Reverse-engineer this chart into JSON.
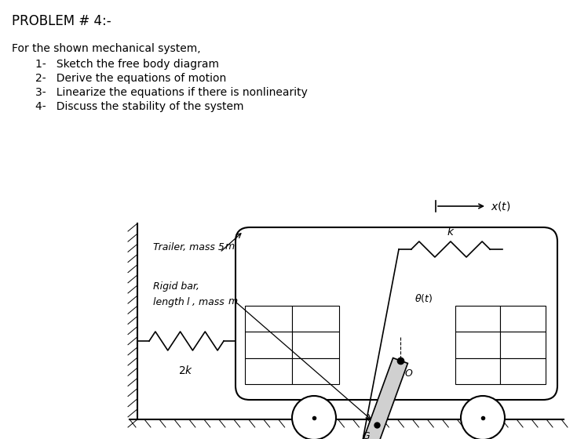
{
  "title": "PROBLEM # 4:-",
  "intro_text": "For the shown mechanical system,",
  "items": [
    "1-   Sketch the free body diagram",
    "2-   Derive the equations of motion",
    "3-   Linearize the equations if there is nonlinearity",
    "4-   Discuss the stability of the system"
  ],
  "bg_color": "#ffffff",
  "text_color": "#000000",
  "lw": 1.0
}
